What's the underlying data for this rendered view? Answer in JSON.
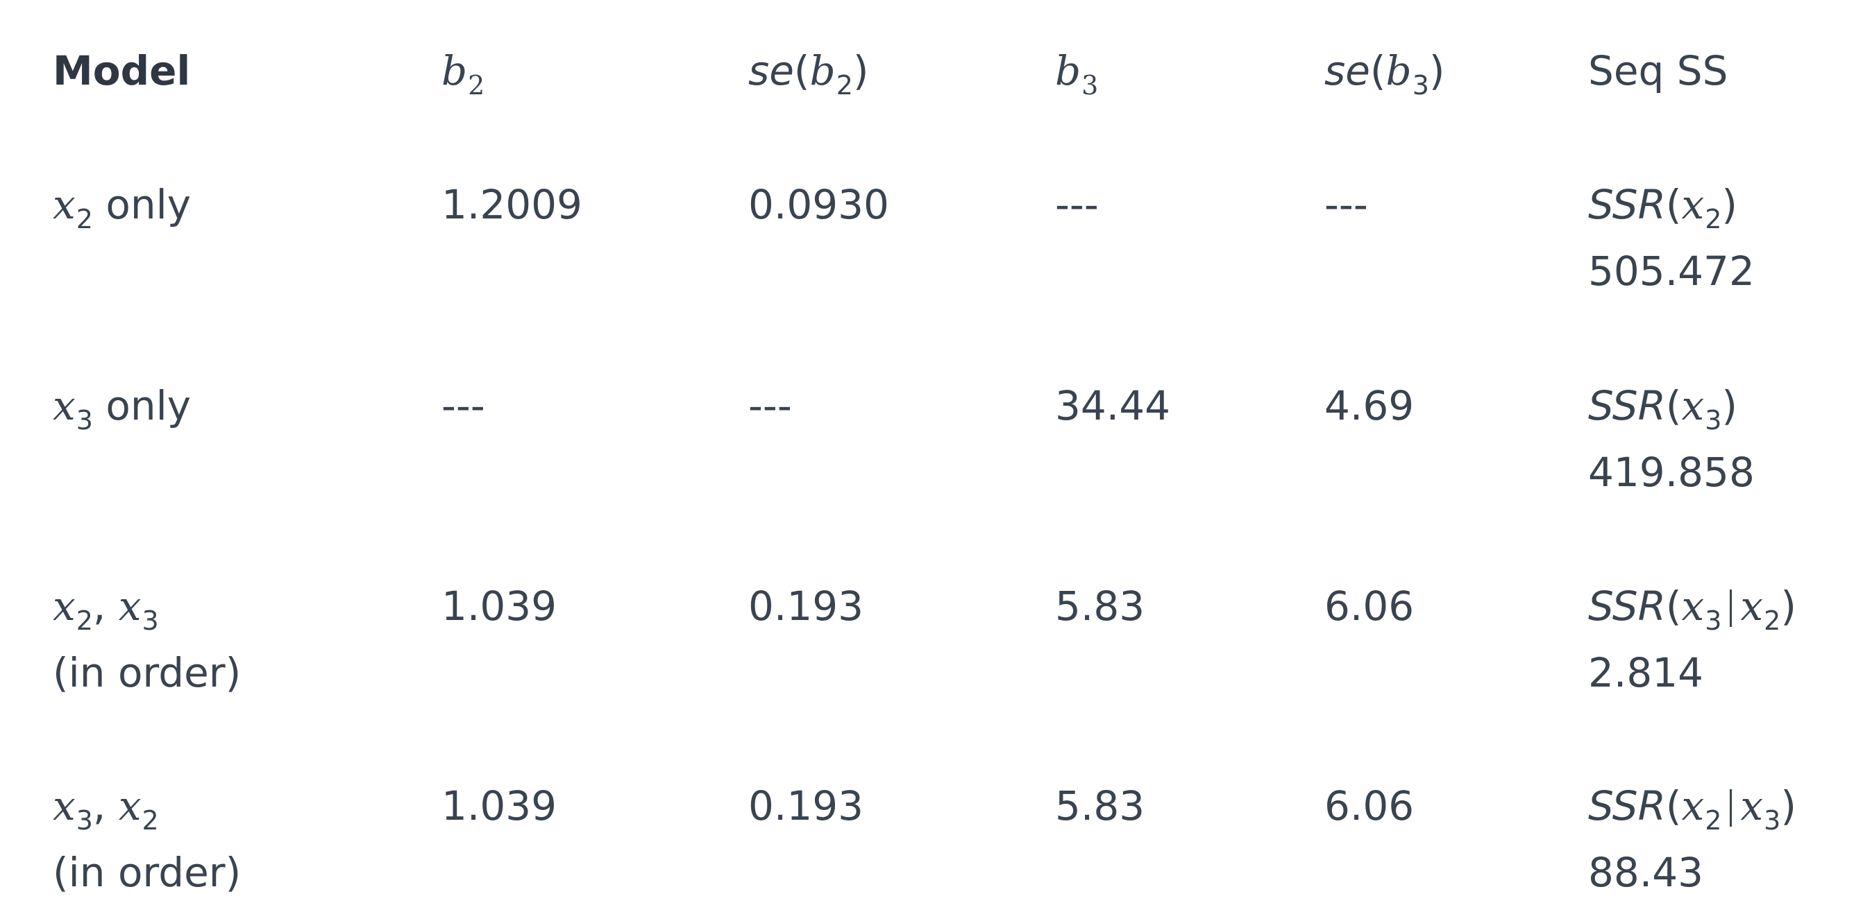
{
  "header": {
    "model": "Model",
    "b2": {
      "sym": "b",
      "sub": "2"
    },
    "se_b2": {
      "fn": "se",
      "sym": "b",
      "sub": "2"
    },
    "b3": {
      "sym": "b",
      "sub": "3"
    },
    "se_b3": {
      "fn": "se",
      "sym": "b",
      "sub": "3"
    },
    "seqss": "Seq SS"
  },
  "rows": [
    {
      "model": {
        "var": "x",
        "sub": "2",
        "suffix": " only"
      },
      "b2": "1.2009",
      "se_b2": "0.0930",
      "b3": "---",
      "se_b3": "---",
      "seqss": {
        "fn": "SSR",
        "var1": "x",
        "sub1": "2",
        "value": "505.472"
      }
    },
    {
      "model": {
        "var": "x",
        "sub": "3",
        "suffix": " only"
      },
      "b2": "---",
      "se_b2": "---",
      "b3": "34.44",
      "se_b3": "4.69",
      "seqss": {
        "fn": "SSR",
        "var1": "x",
        "sub1": "3",
        "value": "419.858"
      }
    },
    {
      "model": {
        "var1": "x",
        "sub1": "2",
        "var2": "x",
        "sub2": "3",
        "note": "(in order)"
      },
      "b2": "1.039",
      "se_b2": "0.193",
      "b3": "5.83",
      "se_b3": "6.06",
      "seqss": {
        "fn": "SSR",
        "var1": "x",
        "sub1": "3",
        "var2": "x",
        "sub2": "2",
        "value": "2.814"
      }
    },
    {
      "model": {
        "var1": "x",
        "sub1": "3",
        "var2": "x",
        "sub2": "2",
        "note": "(in order)"
      },
      "b2": "1.039",
      "se_b2": "0.193",
      "b3": "5.83",
      "se_b3": "6.06",
      "seqss": {
        "fn": "SSR",
        "var1": "x",
        "sub1": "2",
        "var2": "x",
        "sub2": "3",
        "value": "88.43"
      }
    }
  ]
}
